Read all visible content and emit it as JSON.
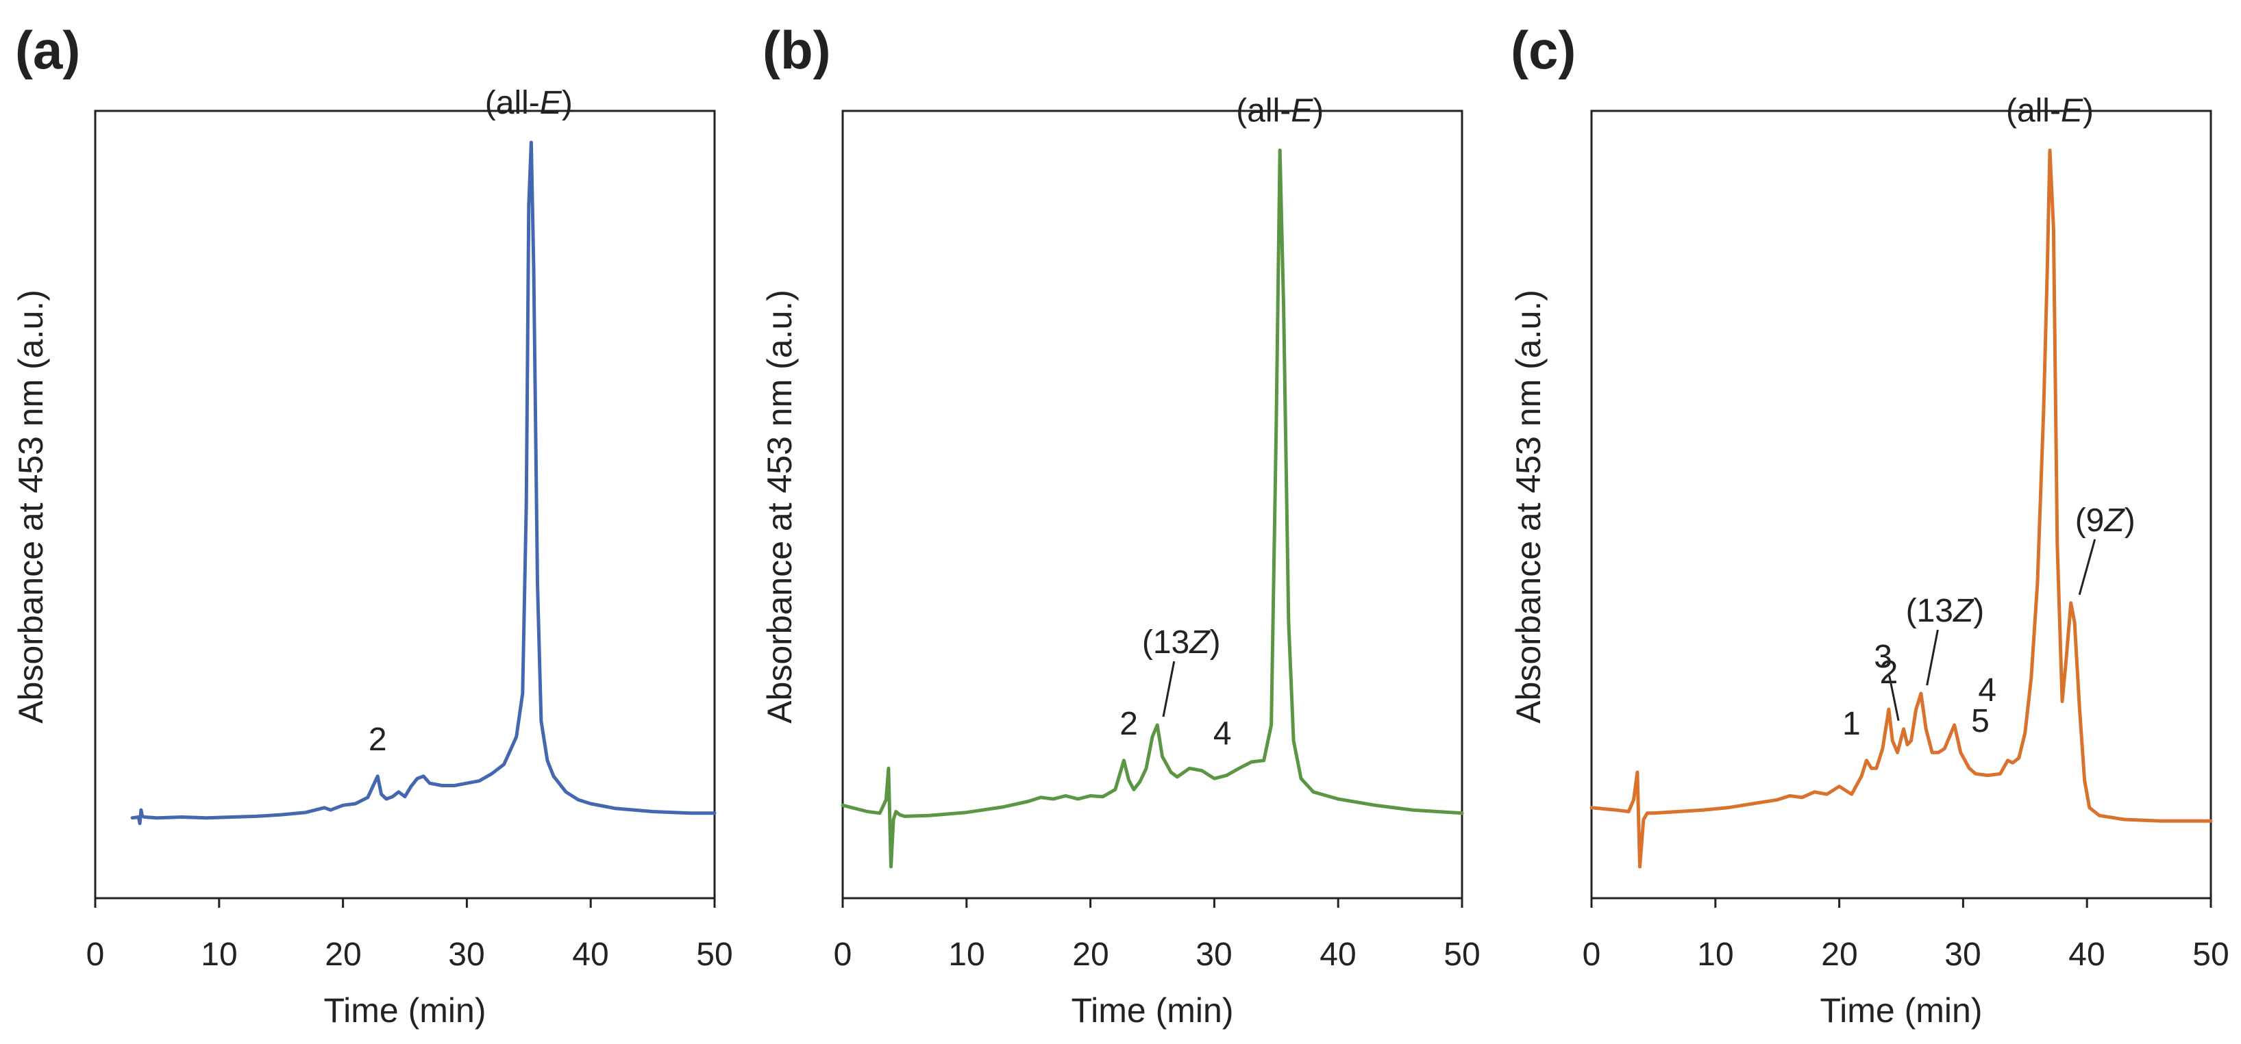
{
  "figure": {
    "panels": [
      "(a)",
      "(b)",
      "(c)"
    ]
  },
  "chart_data": [
    {
      "type": "line",
      "panel_label": "(a)",
      "color": "#4468b0",
      "xlabel": "Time (min)",
      "ylabel": "Absorbance at 453 nm (a.u.)",
      "xlim": [
        0,
        50
      ],
      "ylim": [
        0,
        100
      ],
      "xticks": [
        "0",
        "10",
        "20",
        "30",
        "40",
        "50"
      ],
      "series": [
        {
          "name": "chromatogram-a",
          "x": [
            3.0,
            3.5,
            3.6,
            3.7,
            3.8,
            4.0,
            5.0,
            7.0,
            9.0,
            11.0,
            13.0,
            15.0,
            17.0,
            18.5,
            19.0,
            20.0,
            21.0,
            22.0,
            22.5,
            22.8,
            23.1,
            23.5,
            24.0,
            24.5,
            25.0,
            25.5,
            26.0,
            26.5,
            27.0,
            28.0,
            29.0,
            30.0,
            31.0,
            32.0,
            33.0,
            34.0,
            34.5,
            34.8,
            35.0,
            35.2,
            35.4,
            35.7,
            36.0,
            36.5,
            37.0,
            38.0,
            39.0,
            40.0,
            42.0,
            45.0,
            48.0,
            50.0
          ],
          "y": [
            10.2,
            10.3,
            9.5,
            11.2,
            10.4,
            10.3,
            10.2,
            10.3,
            10.2,
            10.3,
            10.4,
            10.6,
            10.9,
            11.5,
            11.2,
            11.8,
            12.0,
            12.8,
            14.5,
            15.5,
            13.2,
            12.6,
            12.9,
            13.5,
            12.9,
            14.2,
            15.2,
            15.5,
            14.6,
            14.3,
            14.3,
            14.6,
            14.9,
            15.8,
            17.0,
            20.5,
            26.0,
            50.0,
            88.0,
            96.0,
            80.0,
            40.0,
            22.5,
            17.5,
            15.5,
            13.5,
            12.5,
            12.0,
            11.4,
            11.0,
            10.8,
            10.8
          ]
        }
      ],
      "annotations": [
        {
          "text": "2",
          "x": 22.8,
          "y": 15.5
        },
        {
          "text": "(all-E)",
          "x": 35.0,
          "y": 96.0
        }
      ]
    },
    {
      "type": "line",
      "panel_label": "(b)",
      "color": "#5a9644",
      "xlabel": "Time (min)",
      "ylabel": "Absorbance at 453 nm (a.u.)",
      "xlim": [
        0,
        50
      ],
      "ylim": [
        0,
        100
      ],
      "xticks": [
        "0",
        "10",
        "20",
        "30",
        "40",
        "50"
      ],
      "series": [
        {
          "name": "chromatogram-b",
          "x": [
            0.0,
            2.0,
            3.0,
            3.5,
            3.7,
            3.9,
            4.1,
            4.3,
            4.6,
            5.0,
            7.0,
            10.0,
            13.0,
            15.0,
            16.0,
            17.0,
            18.0,
            19.0,
            20.0,
            21.0,
            22.0,
            22.7,
            23.1,
            23.5,
            24.0,
            24.5,
            25.0,
            25.4,
            25.8,
            26.5,
            27.0,
            28.0,
            29.0,
            30.0,
            31.0,
            32.0,
            33.0,
            34.0,
            34.6,
            35.0,
            35.3,
            35.6,
            36.0,
            36.4,
            37.0,
            38.0,
            40.0,
            43.0,
            46.0,
            50.0
          ],
          "y": [
            11.8,
            11.0,
            10.8,
            12.5,
            16.5,
            4.0,
            10.0,
            11.0,
            10.6,
            10.4,
            10.5,
            10.9,
            11.6,
            12.3,
            12.8,
            12.6,
            13.0,
            12.6,
            13.0,
            12.9,
            13.8,
            17.5,
            15.0,
            13.8,
            14.8,
            16.5,
            20.5,
            22.0,
            18.0,
            16.0,
            15.4,
            16.5,
            16.2,
            15.2,
            15.6,
            16.5,
            17.3,
            17.5,
            22.0,
            60.0,
            95.0,
            75.0,
            35.0,
            20.0,
            15.2,
            13.5,
            12.6,
            11.8,
            11.2,
            10.8
          ]
        }
      ],
      "annotations": [
        {
          "text": "2",
          "x": 23.1,
          "y": 17.5
        },
        {
          "text": "(13Z)",
          "x": 25.4,
          "y": 22.0
        },
        {
          "text": "4",
          "x": 28.0,
          "y": 16.5
        },
        {
          "text": "(all-E)",
          "x": 35.3,
          "y": 95.0
        }
      ]
    },
    {
      "type": "line",
      "panel_label": "(c)",
      "color": "#d9722c",
      "xlabel": "Time (min)",
      "ylabel": "Absorbance at 453 nm (a.u.)",
      "xlim": [
        0,
        50
      ],
      "ylim": [
        0,
        100
      ],
      "xticks": [
        "0",
        "10",
        "20",
        "30",
        "40",
        "50"
      ],
      "series": [
        {
          "name": "chromatogram-c",
          "x": [
            0.0,
            2.0,
            3.0,
            3.4,
            3.7,
            3.9,
            4.2,
            4.5,
            5.0,
            7.0,
            9.0,
            11.0,
            13.0,
            15.0,
            16.0,
            17.0,
            18.0,
            19.0,
            20.0,
            21.0,
            21.8,
            22.2,
            22.6,
            23.0,
            23.5,
            24.0,
            24.3,
            24.7,
            25.2,
            25.5,
            25.8,
            26.2,
            26.6,
            27.0,
            27.5,
            28.0,
            28.5,
            29.3,
            29.8,
            30.5,
            31.0,
            32.0,
            33.0,
            33.6,
            34.0,
            34.5,
            35.0,
            35.5,
            36.0,
            36.5,
            36.8,
            37.0,
            37.3,
            37.6,
            38.0,
            38.3,
            38.7,
            39.0,
            39.4,
            39.8,
            40.2,
            41.0,
            43.0,
            46.0,
            50.0
          ],
          "y": [
            11.5,
            11.2,
            11.0,
            12.5,
            16.0,
            4.0,
            10.0,
            10.8,
            10.8,
            11.0,
            11.2,
            11.5,
            12.0,
            12.5,
            13.0,
            12.8,
            13.5,
            13.2,
            14.2,
            13.2,
            15.5,
            17.5,
            16.5,
            16.5,
            19.0,
            24.0,
            20.0,
            18.5,
            21.5,
            19.5,
            20.0,
            24.0,
            26.0,
            21.5,
            18.5,
            18.5,
            19.0,
            22.0,
            18.5,
            16.5,
            15.8,
            15.6,
            15.8,
            17.5,
            17.2,
            17.8,
            21.0,
            28.0,
            40.0,
            62.0,
            80.0,
            95.0,
            85.0,
            45.0,
            25.0,
            30.0,
            37.5,
            35.0,
            24.0,
            15.0,
            11.5,
            10.5,
            10.0,
            9.8,
            9.8
          ]
        }
      ],
      "annotations": [
        {
          "text": "1",
          "x": 22.2,
          "y": 17.5
        },
        {
          "text": "2",
          "x": 24.0,
          "y": 24.0
        },
        {
          "text": "3",
          "x": 25.2,
          "y": 21.5
        },
        {
          "text": "(13Z)",
          "x": 26.6,
          "y": 26.0
        },
        {
          "text": "4",
          "x": 29.3,
          "y": 22.0
        },
        {
          "text": "5",
          "x": 33.6,
          "y": 17.5
        },
        {
          "text": "(all-E)",
          "x": 37.0,
          "y": 95.0
        },
        {
          "text": "(9Z)",
          "x": 38.7,
          "y": 37.5
        }
      ]
    }
  ]
}
